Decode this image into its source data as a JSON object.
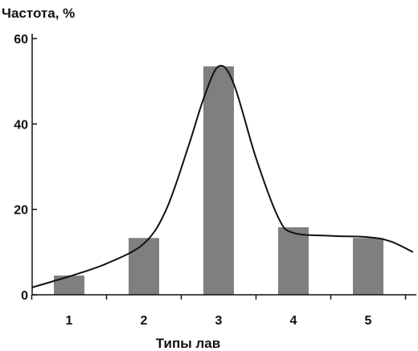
{
  "chart_data": {
    "type": "bar",
    "ylabel": "Частота, %",
    "xlabel": "Типы лав",
    "categories": [
      "1",
      "2",
      "3",
      "4",
      "5"
    ],
    "values": [
      4.5,
      13.3,
      53.5,
      15.8,
      13.3
    ],
    "yticks": [
      0,
      20,
      40,
      60
    ],
    "ylim": [
      0,
      60
    ],
    "grid": false,
    "bar_color": "#7f7f7f",
    "curve_color": "#111111",
    "curve": {
      "type": "line",
      "x": [
        0.5,
        1.0,
        1.5,
        2.0,
        2.3,
        2.6,
        2.8,
        3.0,
        3.2,
        3.5,
        3.8,
        4.0,
        4.5,
        5.0,
        5.3,
        5.6
      ],
      "y": [
        1.7,
        4.3,
        7.3,
        12.0,
        20.0,
        35.0,
        46.0,
        53.5,
        49.5,
        32.0,
        18.0,
        14.5,
        13.8,
        13.5,
        12.5,
        10.0
      ]
    }
  }
}
